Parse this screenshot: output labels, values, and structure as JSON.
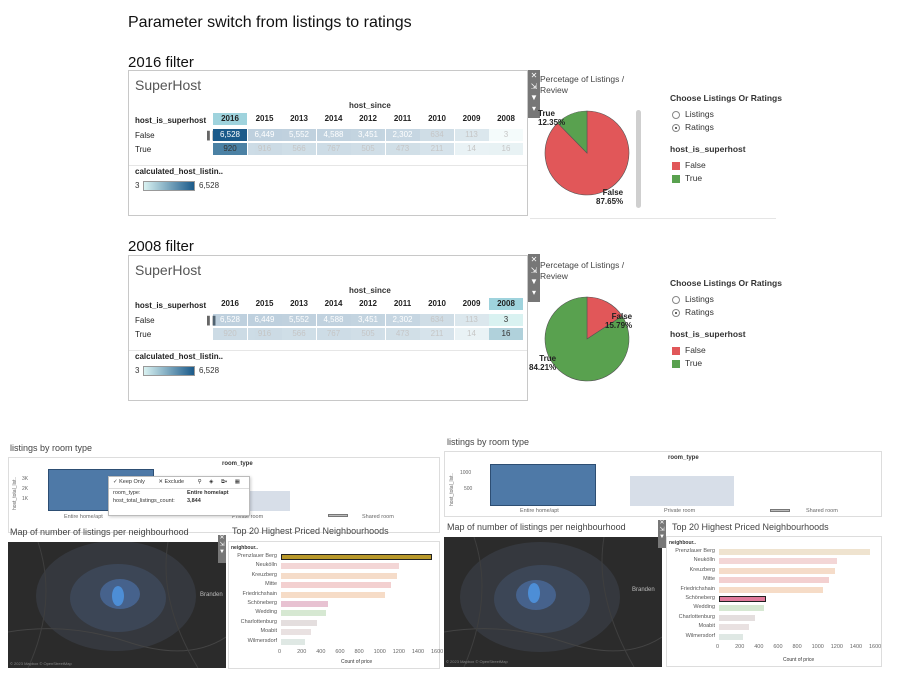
{
  "title": "Parameter switch from listings to ratings",
  "sections": [
    {
      "heading": "2016 filter",
      "dash_title": "SuperHost",
      "host_since_label": "host_since",
      "row_header": "host_is_superhost",
      "years": [
        "2016",
        "2015",
        "2013",
        "2014",
        "2012",
        "2011",
        "2010",
        "2009",
        "2008"
      ],
      "rows": [
        {
          "label": "False",
          "values": [
            "6,528",
            "6,449",
            "5,552",
            "4,588",
            "3,451",
            "2,302",
            "634",
            "113",
            "3"
          ]
        },
        {
          "label": "True",
          "values": [
            "920",
            "916",
            "566",
            "767",
            "505",
            "473",
            "211",
            "14",
            "16"
          ]
        }
      ],
      "legend_title": "calculated_host_listin..",
      "legend_min": "3",
      "legend_max": "6,528",
      "pie_title": "Percetage of Listings / Review",
      "pie_true_label": "True",
      "pie_true_pct": "12.35%",
      "pie_false_label": "False",
      "pie_false_pct": "87.65%",
      "pie_true_value": 12.35,
      "pie_false_value": 87.65
    },
    {
      "heading": "2008 filter",
      "dash_title": "SuperHost",
      "host_since_label": "host_since",
      "row_header": "host_is_superhost",
      "years": [
        "2016",
        "2015",
        "2013",
        "2014",
        "2012",
        "2011",
        "2010",
        "2009",
        "2008"
      ],
      "rows": [
        {
          "label": "False",
          "values": [
            "6,528",
            "6,449",
            "5,552",
            "4,588",
            "3,451",
            "2,302",
            "634",
            "113",
            "3"
          ]
        },
        {
          "label": "True",
          "values": [
            "920",
            "916",
            "566",
            "767",
            "505",
            "473",
            "211",
            "14",
            "16"
          ]
        }
      ],
      "legend_title": "calculated_host_listin..",
      "legend_min": "3",
      "legend_max": "6,528",
      "pie_title": "Percetage of Listings / Review",
      "pie_true_label": "True",
      "pie_true_pct": "84.21%",
      "pie_false_label": "False",
      "pie_false_pct": "15.79%",
      "pie_true_value": 84.21,
      "pie_false_value": 15.79
    }
  ],
  "controls": {
    "param_title": "Choose Listings Or Ratings",
    "options": [
      "Listings",
      "Ratings"
    ],
    "selected": "Ratings",
    "legend_title": "host_is_superhost",
    "legend_items": [
      {
        "label": "False",
        "color": "#e15759"
      },
      {
        "label": "True",
        "color": "#59a14f"
      }
    ]
  },
  "room_type": {
    "title": "listings by room type",
    "axis_label": "room_type",
    "y_label": "host_total_list..",
    "y_ticks_left": [
      "3K",
      "2K",
      "1K"
    ],
    "y_ticks_right": [
      "1000",
      "500"
    ],
    "categories": [
      "Entire home/apt",
      "Private room",
      "Shared room"
    ],
    "tooltip": {
      "keep_only": "Keep Only",
      "exclude": "Exclude",
      "room_type_key": "room_type:",
      "room_type_val": "Entire home/apt",
      "count_key": "host_total_listings_count:",
      "count_val": "3,844"
    }
  },
  "map": {
    "title": "Map of number of listings per neighbourhood",
    "place_label": "Branden",
    "credit": "© 2023 Mapbox © OpenStreetMap"
  },
  "top20": {
    "title": "Top 20 Highest Priced Neighbourhoods",
    "header": "neighbour..",
    "x_title": "Count of price",
    "x_ticks": [
      "0",
      "200",
      "400",
      "600",
      "800",
      "1000",
      "1200",
      "1400",
      "1600"
    ],
    "neighbourhoods": [
      "Prenzlauer Berg",
      "Neukölln",
      "Kreuzberg",
      "Mitte",
      "Friedrichshain",
      "Schöneberg",
      "Wedding",
      "Charlottenburg",
      "Moabit",
      "Wilmersdorf"
    ],
    "counts": [
      1580,
      1230,
      1210,
      1150,
      1090,
      490,
      470,
      380,
      310,
      250
    ],
    "highlight_left": "Prenzlauer Berg",
    "highlight_right": "Schöneberg"
  }
}
